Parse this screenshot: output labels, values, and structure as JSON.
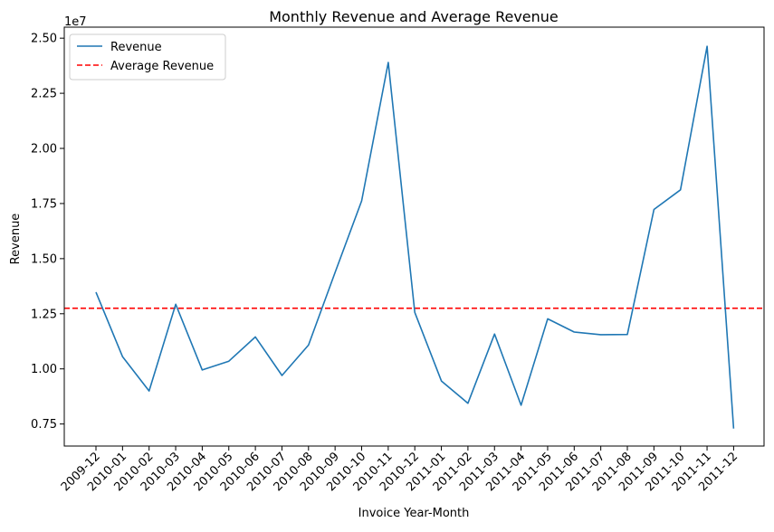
{
  "chart_data": {
    "type": "line",
    "title": "Monthly Revenue and Average Revenue",
    "xlabel": "Invoice Year-Month",
    "ylabel": "Revenue",
    "y_scale_label": "1e7",
    "categories": [
      "2009-12",
      "2010-01",
      "2010-02",
      "2010-03",
      "2010-04",
      "2010-05",
      "2010-06",
      "2010-07",
      "2010-08",
      "2010-09",
      "2010-10",
      "2010-11",
      "2010-12",
      "2011-01",
      "2011-02",
      "2011-03",
      "2011-04",
      "2011-05",
      "2011-06",
      "2011-07",
      "2011-08",
      "2011-09",
      "2011-10",
      "2011-11",
      "2011-12"
    ],
    "series": [
      {
        "name": "Revenue",
        "color": "#1f77b4",
        "style": "solid",
        "values": [
          13480000,
          10560000,
          9000000,
          12930000,
          9950000,
          10350000,
          11450000,
          9700000,
          11080000,
          14380000,
          17620000,
          23900000,
          12560000,
          9450000,
          8440000,
          11580000,
          8350000,
          12270000,
          11670000,
          11550000,
          11560000,
          17230000,
          18120000,
          24630000,
          7290000
        ]
      }
    ],
    "reference_lines": [
      {
        "name": "Average Revenue",
        "color": "#ff0000",
        "style": "dashed",
        "value": 12750000
      }
    ],
    "yticks": [
      7500000,
      10000000,
      12500000,
      15000000,
      17500000,
      20000000,
      22500000,
      25000000
    ],
    "ytick_labels": [
      "0.75",
      "1.00",
      "1.25",
      "1.50",
      "1.75",
      "2.00",
      "2.25",
      "2.50"
    ],
    "ylim": [
      6500000,
      25500000
    ],
    "grid": false,
    "legend_position": "upper-left"
  }
}
